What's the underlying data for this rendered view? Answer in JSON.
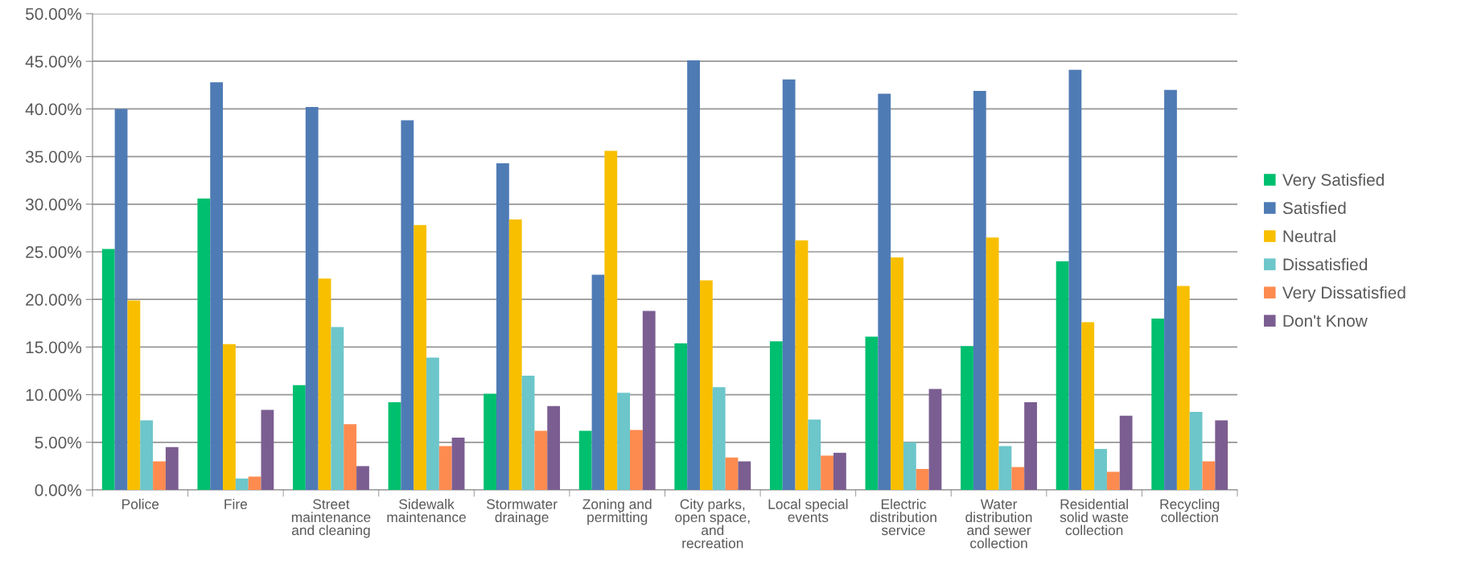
{
  "chart_data": {
    "type": "bar",
    "categories": [
      "Police",
      "Fire",
      "Street\nmaintenance\nand cleaning",
      "Sidewalk\nmaintenance",
      "Stormwater\ndrainage",
      "Zoning and\npermitting",
      "City parks,\nopen space,\nand\nrecreation",
      "Local special\nevents",
      "Electric\ndistribution\nservice",
      "Water\ndistribution\nand sewer\ncollection",
      "Residential\nsolid waste\ncollection",
      "Recycling\ncollection"
    ],
    "series": [
      {
        "name": "Very Satisfied",
        "color": "#00bf6f",
        "values": [
          25.3,
          30.6,
          11.0,
          9.2,
          10.1,
          6.2,
          15.4,
          15.6,
          16.1,
          15.1,
          24.0,
          18.0
        ]
      },
      {
        "name": "Satisfied",
        "color": "#4f7bb5",
        "values": [
          40.0,
          42.8,
          40.2,
          38.8,
          34.3,
          22.6,
          45.1,
          43.1,
          41.6,
          41.9,
          44.1,
          42.0
        ]
      },
      {
        "name": "Neutral",
        "color": "#f8bf00",
        "values": [
          19.9,
          15.3,
          22.2,
          27.8,
          28.4,
          35.6,
          22.0,
          26.2,
          24.4,
          26.5,
          17.6,
          21.4
        ]
      },
      {
        "name": "Dissatisfied",
        "color": "#6cc6ca",
        "values": [
          7.3,
          1.2,
          17.1,
          13.9,
          12.0,
          10.2,
          10.8,
          7.4,
          5.0,
          4.6,
          4.3,
          8.2
        ]
      },
      {
        "name": "Very Dissatisfied",
        "color": "#fd8b50",
        "values": [
          3.0,
          1.4,
          6.9,
          4.6,
          6.2,
          6.3,
          3.4,
          3.6,
          2.2,
          2.4,
          1.9,
          3.0
        ]
      },
      {
        "name": "Don't Know",
        "color": "#7b5e91",
        "values": [
          4.5,
          8.4,
          2.5,
          5.5,
          8.8,
          18.8,
          3.0,
          3.9,
          10.6,
          9.2,
          7.8,
          7.3
        ]
      }
    ],
    "ylim": [
      0,
      50
    ],
    "yticks": [
      {
        "value": 0,
        "label": "0.00%"
      },
      {
        "value": 5,
        "label": "5.00%"
      },
      {
        "value": 10,
        "label": "10.00%"
      },
      {
        "value": 15,
        "label": "15.00%"
      },
      {
        "value": 20,
        "label": "20.00%"
      },
      {
        "value": 25,
        "label": "25.00%"
      },
      {
        "value": 30,
        "label": "30.00%"
      },
      {
        "value": 35,
        "label": "35.00%"
      },
      {
        "value": 40,
        "label": "40.00%"
      },
      {
        "value": 45,
        "label": "45.00%"
      },
      {
        "value": 50,
        "label": "50.00%"
      }
    ],
    "grid": "y",
    "legend": "right"
  }
}
